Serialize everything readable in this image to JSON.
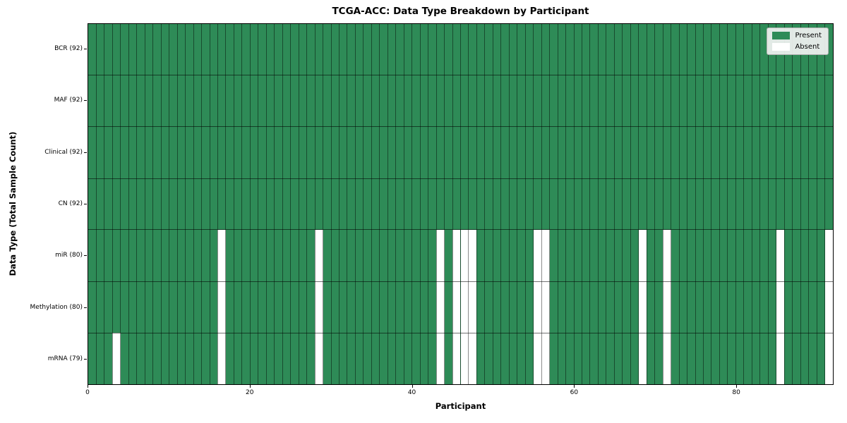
{
  "figure": {
    "title": "TCGA-ACC: Data Type Breakdown by Participant",
    "xlabel": "Participant",
    "ylabel": "Data Type (Total Sample Count)"
  },
  "legend": {
    "position": "upper right",
    "items": [
      {
        "label": "Present",
        "color": "#2e8b57"
      },
      {
        "label": "Absent",
        "color": "#ffffff"
      }
    ]
  },
  "colors": {
    "present": "#2e8b57",
    "absent": "#ffffff",
    "grid_line": "rgba(0,0,0,0.45)",
    "row_separator": "rgba(0,0,0,0.55)",
    "plot_border": "#000000"
  },
  "chart_data": {
    "type": "heatmap",
    "title": "TCGA-ACC: Data Type Breakdown by Participant",
    "xlabel": "Participant",
    "ylabel": "Data Type (Total Sample Count)",
    "legend": [
      "Present",
      "Absent"
    ],
    "legend_position": "upper right",
    "grid": true,
    "n_participants": 92,
    "x_range": [
      0,
      92
    ],
    "x_ticks": [
      0,
      20,
      40,
      60,
      80
    ],
    "rows": [
      {
        "label": "BCR (92)",
        "data_type": "BCR",
        "present_count": 92,
        "absent_participants": []
      },
      {
        "label": "MAF (92)",
        "data_type": "MAF",
        "present_count": 92,
        "absent_participants": []
      },
      {
        "label": "Clinical (92)",
        "data_type": "Clinical",
        "present_count": 92,
        "absent_participants": []
      },
      {
        "label": "CN (92)",
        "data_type": "CN",
        "present_count": 92,
        "absent_participants": []
      },
      {
        "label": "miR (80)",
        "data_type": "miR",
        "present_count": 80,
        "absent_participants": [
          16,
          28,
          43,
          45,
          46,
          47,
          55,
          56,
          68,
          71,
          85,
          91
        ]
      },
      {
        "label": "Methylation (80)",
        "data_type": "Methylation",
        "present_count": 80,
        "absent_participants": [
          16,
          28,
          43,
          45,
          46,
          47,
          55,
          56,
          68,
          71,
          85,
          91
        ]
      },
      {
        "label": "mRNA (79)",
        "data_type": "mRNA",
        "present_count": 79,
        "absent_participants": [
          3,
          16,
          28,
          43,
          45,
          46,
          47,
          55,
          56,
          68,
          71,
          85,
          91
        ]
      }
    ]
  }
}
